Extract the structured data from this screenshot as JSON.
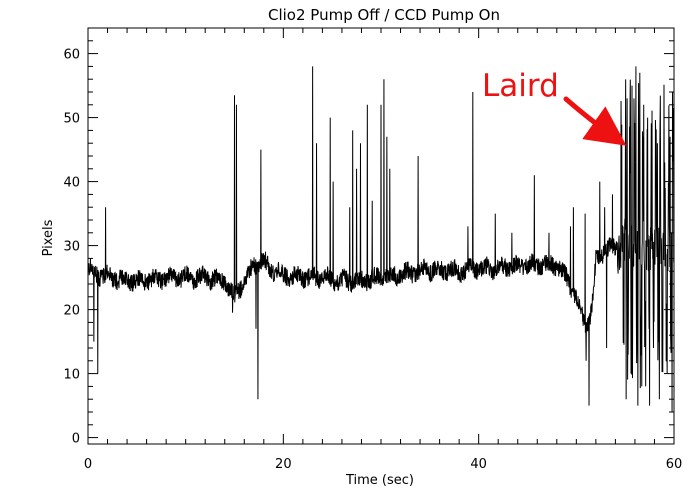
{
  "chart_data": {
    "type": "line",
    "title": "Clio2 Pump Off / CCD Pump On",
    "xlabel": "Time (sec)",
    "ylabel": "Pixels",
    "xlim": [
      0,
      60
    ],
    "ylim": [
      -1,
      64
    ],
    "xticks": [
      0,
      20,
      40,
      60
    ],
    "yticks": [
      0,
      10,
      20,
      30,
      40,
      50,
      60
    ],
    "x_minor_step": 2,
    "y_minor_step": 2,
    "grid": false,
    "line_color": "#000000",
    "annotation": {
      "text": "Laird",
      "color": "#ee1111",
      "arrow_target": [
        54.3,
        46.5
      ]
    },
    "series": [
      {
        "baseline": [
          [
            0,
            26.5
          ],
          [
            1,
            25.5
          ],
          [
            3,
            24.8
          ],
          [
            5,
            24.5
          ],
          [
            8,
            25
          ],
          [
            10,
            25
          ],
          [
            12,
            25
          ],
          [
            14,
            24.5
          ],
          [
            15,
            22
          ],
          [
            16,
            24.5
          ],
          [
            17,
            27
          ],
          [
            18,
            27.5
          ],
          [
            19,
            26
          ],
          [
            20,
            25.5
          ],
          [
            22,
            25
          ],
          [
            24,
            25
          ],
          [
            26,
            24.5
          ],
          [
            28,
            24.5
          ],
          [
            30,
            25
          ],
          [
            32,
            25.5
          ],
          [
            34,
            26
          ],
          [
            36,
            26.3
          ],
          [
            38,
            26
          ],
          [
            40,
            26.5
          ],
          [
            42,
            26.5
          ],
          [
            44,
            26.8
          ],
          [
            46,
            27
          ],
          [
            48,
            27
          ],
          [
            49,
            25
          ],
          [
            50,
            22
          ],
          [
            51,
            17
          ],
          [
            51.6,
            20
          ],
          [
            52,
            27.5
          ],
          [
            53,
            29.5
          ],
          [
            54,
            29.5
          ],
          [
            55,
            30
          ],
          [
            56,
            29.5
          ],
          [
            57,
            30
          ],
          [
            58,
            30
          ],
          [
            59,
            29.5
          ],
          [
            60,
            29.5
          ]
        ],
        "spikes": [
          [
            0.6,
            15
          ],
          [
            1.0,
            10
          ],
          [
            1.8,
            36
          ],
          [
            15.0,
            53.5
          ],
          [
            15.2,
            52
          ],
          [
            14.8,
            19.5
          ],
          [
            17.4,
            6
          ],
          [
            17.7,
            45
          ],
          [
            17.2,
            17
          ],
          [
            23.0,
            58
          ],
          [
            23.4,
            46
          ],
          [
            24.8,
            50
          ],
          [
            25.1,
            40
          ],
          [
            26.8,
            36
          ],
          [
            27.1,
            48
          ],
          [
            27.5,
            42
          ],
          [
            27.9,
            46
          ],
          [
            28.6,
            52
          ],
          [
            29.1,
            37
          ],
          [
            30.0,
            52
          ],
          [
            30.3,
            56
          ],
          [
            30.6,
            47
          ],
          [
            30.9,
            42
          ],
          [
            33.8,
            44
          ],
          [
            39.4,
            54
          ],
          [
            38.9,
            33
          ],
          [
            41.7,
            35
          ],
          [
            43.4,
            32
          ],
          [
            45.7,
            41
          ],
          [
            47.2,
            32
          ],
          [
            49.4,
            33
          ],
          [
            49.7,
            36
          ],
          [
            50.9,
            35
          ],
          [
            51.3,
            5
          ],
          [
            51.0,
            12
          ],
          [
            52.4,
            40
          ],
          [
            52.9,
            36
          ],
          [
            53.7,
            38
          ],
          [
            53.1,
            14
          ],
          [
            55.2,
            53
          ],
          [
            55.7,
            55
          ],
          [
            56.1,
            58
          ],
          [
            56.5,
            57
          ],
          [
            56.9,
            52
          ],
          [
            57.3,
            50
          ],
          [
            57.7,
            46
          ],
          [
            58.3,
            46
          ],
          [
            59.1,
            39
          ],
          [
            59.6,
            47
          ],
          [
            55.1,
            6
          ],
          [
            55.6,
            10
          ],
          [
            56.3,
            5
          ],
          [
            56.7,
            8
          ],
          [
            57.1,
            8
          ],
          [
            57.5,
            5
          ],
          [
            57.9,
            14
          ],
          [
            58.5,
            6
          ],
          [
            59.3,
            10
          ],
          [
            59.8,
            4
          ]
        ]
      }
    ]
  }
}
